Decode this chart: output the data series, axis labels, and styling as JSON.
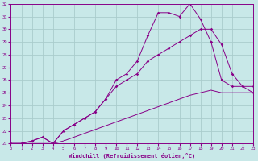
{
  "xlabel": "Windchill (Refroidissement éolien,°C)",
  "bg_color": "#c8e8e8",
  "line_color": "#880088",
  "grid_color": "#aacccc",
  "xlim": [
    0,
    23
  ],
  "ylim": [
    21,
    32
  ],
  "xticks": [
    0,
    1,
    2,
    3,
    4,
    5,
    6,
    7,
    8,
    9,
    10,
    11,
    12,
    13,
    14,
    15,
    16,
    17,
    18,
    19,
    20,
    21,
    22,
    23
  ],
  "yticks": [
    21,
    22,
    23,
    24,
    25,
    26,
    27,
    28,
    29,
    30,
    31,
    32
  ],
  "line1_x": [
    0,
    1,
    2,
    3,
    4,
    5,
    6,
    7,
    8,
    9,
    10,
    11,
    12,
    13,
    14,
    15,
    16,
    17,
    18,
    19,
    20,
    21,
    22,
    23
  ],
  "line1_y": [
    21,
    21,
    21,
    21,
    21,
    21.2,
    21.5,
    21.8,
    22.1,
    22.4,
    22.7,
    23.0,
    23.3,
    23.6,
    23.9,
    24.2,
    24.5,
    24.8,
    25.0,
    25.2,
    25.0,
    25.0,
    25.0,
    25.0
  ],
  "line2_x": [
    0,
    1,
    2,
    3,
    4,
    5,
    6,
    7,
    8,
    9,
    10,
    11,
    12,
    13,
    14,
    15,
    16,
    17,
    18,
    19,
    20,
    21,
    22,
    23
  ],
  "line2_y": [
    21,
    21,
    21.2,
    21.5,
    21,
    22,
    22.5,
    23,
    23.5,
    24.5,
    25.5,
    26.0,
    26.5,
    27.5,
    28.0,
    28.5,
    29.0,
    29.5,
    30.0,
    30.0,
    28.8,
    26.5,
    25.5,
    25.0
  ],
  "line3_x": [
    0,
    1,
    2,
    3,
    4,
    5,
    6,
    7,
    8,
    9,
    10,
    11,
    12,
    13,
    14,
    15,
    16,
    17,
    18,
    19,
    20,
    21,
    22,
    23
  ],
  "line3_y": [
    21,
    21,
    21.2,
    21.5,
    21,
    22,
    22.5,
    23.0,
    23.5,
    24.5,
    26.0,
    26.5,
    27.5,
    29.5,
    31.3,
    31.3,
    31.0,
    32.0,
    30.8,
    29.0,
    26.0,
    25.5,
    25.5,
    25.5
  ]
}
